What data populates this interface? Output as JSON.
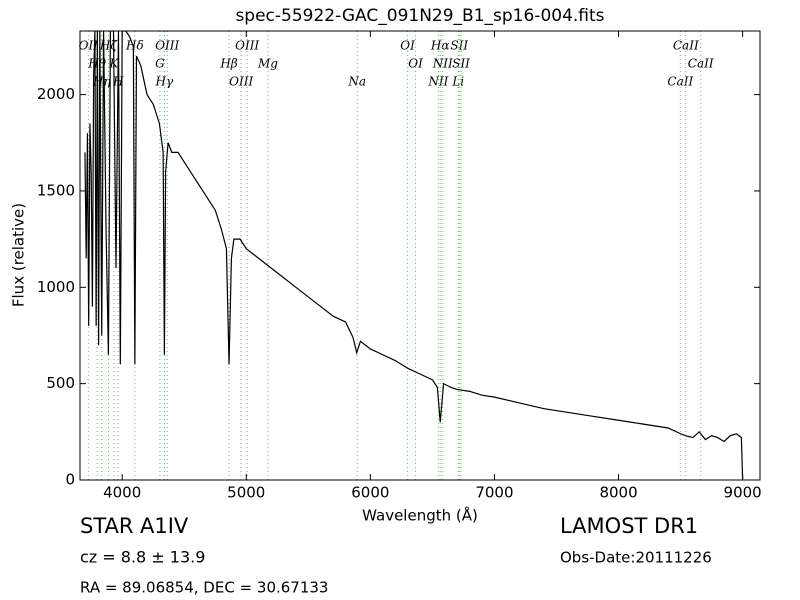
{
  "chart_data": {
    "type": "line",
    "title": "spec-55922-GAC_091N29_B1_sp16-004.fits",
    "x_label": "Wavelength (Å)",
    "y_label": "Flux (relative)",
    "xlim": [
      3660,
      9140
    ],
    "ylim": [
      0,
      2330
    ],
    "xticks": [
      4000,
      5000,
      6000,
      7000,
      8000,
      9000
    ],
    "yticks": [
      0,
      500,
      1000,
      1500,
      2000
    ],
    "color": "#000000",
    "line_color": "#66bb66",
    "x": [
      3700,
      3710,
      3720,
      3730,
      3740,
      3750,
      3760,
      3770,
      3780,
      3790,
      3800,
      3810,
      3820,
      3835,
      3850,
      3870,
      3889,
      3905,
      3930,
      3950,
      3970,
      3985,
      4000,
      4030,
      4060,
      4090,
      4102,
      4115,
      4150,
      4200,
      4250,
      4300,
      4330,
      4340,
      4350,
      4370,
      4400,
      4450,
      4500,
      4550,
      4600,
      4650,
      4700,
      4750,
      4800,
      4840,
      4861,
      4880,
      4900,
      4950,
      5000,
      5100,
      5200,
      5300,
      5400,
      5500,
      5600,
      5700,
      5800,
      5860,
      5890,
      5920,
      6000,
      6100,
      6200,
      6300,
      6400,
      6500,
      6540,
      6563,
      6590,
      6650,
      6700,
      6800,
      6900,
      7000,
      7200,
      7400,
      7600,
      7800,
      8000,
      8200,
      8400,
      8500,
      8540,
      8600,
      8650,
      8700,
      8750,
      8800,
      8850,
      8900,
      8950,
      8990,
      9000
    ],
    "values": [
      1700,
      1150,
      1800,
      800,
      1850,
      1600,
      900,
      2100,
      2330,
      800,
      2330,
      700,
      2330,
      750,
      2330,
      1300,
      650,
      2330,
      2330,
      1100,
      2330,
      600,
      2330,
      2330,
      2300,
      2250,
      600,
      2200,
      2150,
      2000,
      1950,
      1850,
      1700,
      650,
      1600,
      1750,
      1700,
      1700,
      1650,
      1600,
      1550,
      1500,
      1450,
      1400,
      1300,
      1200,
      600,
      1150,
      1250,
      1250,
      1200,
      1150,
      1100,
      1050,
      1000,
      950,
      900,
      850,
      820,
      740,
      660,
      720,
      680,
      650,
      620,
      580,
      550,
      520,
      480,
      300,
      500,
      480,
      470,
      460,
      440,
      430,
      400,
      370,
      350,
      330,
      310,
      290,
      270,
      240,
      230,
      220,
      250,
      210,
      230,
      220,
      200,
      230,
      240,
      220,
      0
    ],
    "lines": [
      {
        "label": "OII",
        "wavelength": 3727
      },
      {
        "label": "Hθ",
        "wavelength": 3798
      },
      {
        "label": "Hη",
        "wavelength": 3835
      },
      {
        "label": "Hζ",
        "wavelength": 3889
      },
      {
        "label": "K",
        "wavelength": 3934
      },
      {
        "label": "H",
        "wavelength": 3968
      },
      {
        "label": "Hδ",
        "wavelength": 4102
      },
      {
        "label": "G",
        "wavelength": 4304
      },
      {
        "label": "Hγ",
        "wavelength": 4340
      },
      {
        "label": "OIII",
        "wavelength": 4363
      },
      {
        "label": "Hβ",
        "wavelength": 4861
      },
      {
        "label": "OIII",
        "wavelength": 4959
      },
      {
        "label": "OIII",
        "wavelength": 5007
      },
      {
        "label": "Mg",
        "wavelength": 5175
      },
      {
        "label": "Na",
        "wavelength": 5894
      },
      {
        "label": "OI",
        "wavelength": 6300
      },
      {
        "label": "OI",
        "wavelength": 6364
      },
      {
        "label": "NII",
        "wavelength": 6548
      },
      {
        "label": "Hα",
        "wavelength": 6563
      },
      {
        "label": "NII",
        "wavelength": 6583
      },
      {
        "label": "Li",
        "wavelength": 6708
      },
      {
        "label": "SII",
        "wavelength": 6716
      },
      {
        "label": "SII",
        "wavelength": 6731
      },
      {
        "label": "CaII",
        "wavelength": 8498
      },
      {
        "label": "CaII",
        "wavelength": 8542
      },
      {
        "label": "CaII",
        "wavelength": 8662
      }
    ],
    "annotations": {
      "class": "STAR",
      "subclass": "A1IV",
      "survey": "LAMOST DR1",
      "redshift": "cz = 8.8 ± 13.9",
      "obs_date": "Obs-Date:20111226",
      "coords": "RA = 89.06854, DEC = 30.67133"
    }
  }
}
